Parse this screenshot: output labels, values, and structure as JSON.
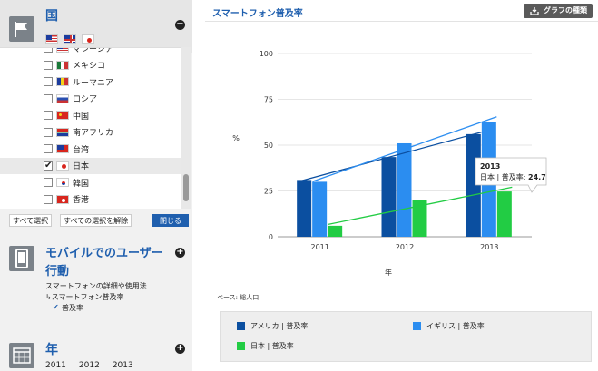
{
  "sidebar": {
    "countries": {
      "title": "国",
      "toggle": "−",
      "header_flags": [
        "us",
        "gb",
        "jp"
      ],
      "items": [
        {
          "label": "マレーシア",
          "flag": "my",
          "checked": false
        },
        {
          "label": "メキシコ",
          "flag": "mx",
          "checked": false
        },
        {
          "label": "ルーマニア",
          "flag": "ro",
          "checked": false
        },
        {
          "label": "ロシア",
          "flag": "ru",
          "checked": false
        },
        {
          "label": "中国",
          "flag": "cn",
          "checked": false
        },
        {
          "label": "南アフリカ",
          "flag": "za",
          "checked": false
        },
        {
          "label": "台湾",
          "flag": "tw",
          "checked": false
        },
        {
          "label": "日本",
          "flag": "jp",
          "checked": true
        },
        {
          "label": "韓国",
          "flag": "kr",
          "checked": false
        },
        {
          "label": "香港",
          "flag": "hk",
          "checked": false
        }
      ],
      "check_glyph": "✔",
      "select_all": "すべて選択",
      "clear_all": "すべての選択を解除",
      "close": "閉じる"
    },
    "mobile": {
      "title_line1": "モバイルでのユーザー",
      "title_line2": "行動",
      "toggle": "+",
      "desc": "スマートフォンの詳細や使用法",
      "sub": "↳スマートフォン普及率",
      "selected_glyph": "✔",
      "selected": "普及率"
    },
    "year": {
      "title": "年",
      "toggle": "+",
      "years": [
        "2011",
        "2012",
        "2013"
      ]
    }
  },
  "main": {
    "title": "スマートフォン普及率",
    "chart_type_button": "グラフの種類",
    "base_note": "ベース: 総人口"
  },
  "colors": {
    "accent": "#1f5fae",
    "usa": "#0b4fa0",
    "uk": "#2b8df0",
    "japan": "#22cc44"
  },
  "chart_data": {
    "type": "bar",
    "categories": [
      "2011",
      "2012",
      "2013"
    ],
    "ylabel": "%",
    "xlabel": "年",
    "ylim": [
      0,
      100
    ],
    "yticks": [
      0,
      25,
      50,
      75,
      100
    ],
    "series": [
      {
        "name": "アメリカ | 普及率",
        "values": [
          31,
          43.5,
          56
        ],
        "color": "#0b4fa0"
      },
      {
        "name": "イギリス | 普及率",
        "values": [
          30,
          51,
          62.5
        ],
        "color": "#2b8df0"
      },
      {
        "name": "日本 | 普及率",
        "values": [
          6,
          20,
          24.7
        ],
        "color": "#22cc44"
      }
    ],
    "trendlines": true,
    "tooltip": {
      "title": "2013",
      "label": "日本 | 普及率:",
      "value": "24.7"
    },
    "legend_placement": "bottom"
  }
}
